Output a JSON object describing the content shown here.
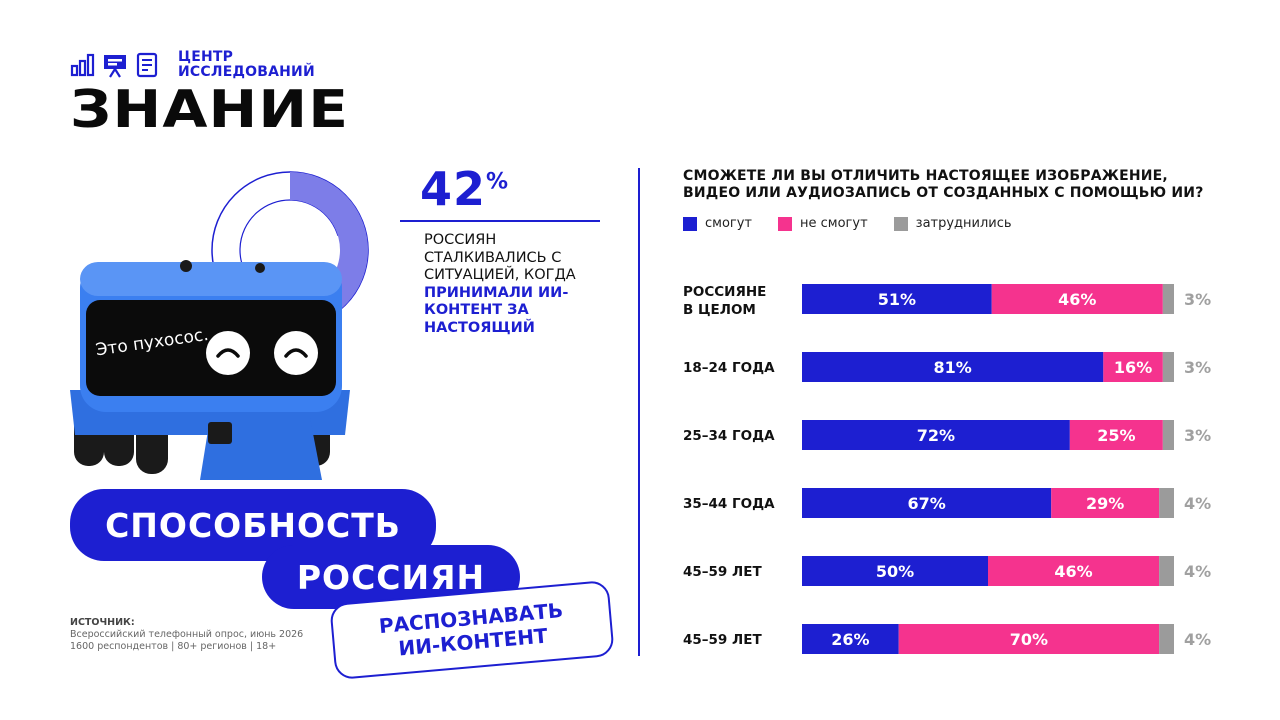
{
  "logo": {
    "line1": "ЦЕНТР",
    "line2": "ИССЛЕДОВАНИЙ",
    "name": "ЗНАНИЕ"
  },
  "stat": {
    "percent": "42",
    "percent_sign": "%",
    "text_plain": "РОССИЯН СТАЛКИВАЛИСЬ С СИТУАЦИЕЙ, КОГДА ",
    "text_highlight": "ПРИНИМАЛИ ИИ-КОНТЕНТ ЗА НАСТОЯЩИЙ",
    "ring_fraction": 0.42
  },
  "robot": {
    "screen_text": "Это пухосос."
  },
  "headline": {
    "line1": "СПОСОБНОСТЬ",
    "line2": "РОССИЯН",
    "line3a": "РАСПОЗНАВАТЬ",
    "line3b": "ИИ-КОНТЕНТ"
  },
  "source": {
    "label": "ИСТОЧНИК:",
    "line1": "Всероссийский телефонный опрос, июнь 2026",
    "line2": "1600 респондентов | 80+ регионов | 18+"
  },
  "colors": {
    "blue": "#1d1fd1",
    "pink": "#f5338e",
    "gray": "#9b9b9b",
    "light_blue": "#7d7de8"
  },
  "chart_data": {
    "type": "bar",
    "orientation": "horizontal",
    "stacked": true,
    "title": "СМОЖЕТЕ ЛИ ВЫ ОТЛИЧИТЬ НАСТОЯЩЕЕ ИЗОБРАЖЕНИЕ, ВИДЕО ИЛИ АУДИОЗАПИСЬ ОТ СОЗДАННЫХ С ПОМОЩЬЮ ИИ?",
    "categories": [
      "РОССИЯНЕ В ЦЕЛОМ",
      "18–24 ГОДА",
      "25–34 ГОДА",
      "35–44 ГОДА",
      "45–59 ЛЕТ",
      "45–59 ЛЕТ"
    ],
    "series": [
      {
        "name": "смогут",
        "color": "#1d1fd1",
        "values": [
          51,
          81,
          72,
          67,
          50,
          26
        ]
      },
      {
        "name": "не смогут",
        "color": "#f5338e",
        "values": [
          46,
          16,
          25,
          29,
          46,
          70
        ]
      },
      {
        "name": "затруднились",
        "color": "#9b9b9b",
        "values": [
          3,
          3,
          3,
          4,
          4,
          4
        ]
      }
    ],
    "legend_position": "top-left",
    "value_suffix": "%"
  }
}
